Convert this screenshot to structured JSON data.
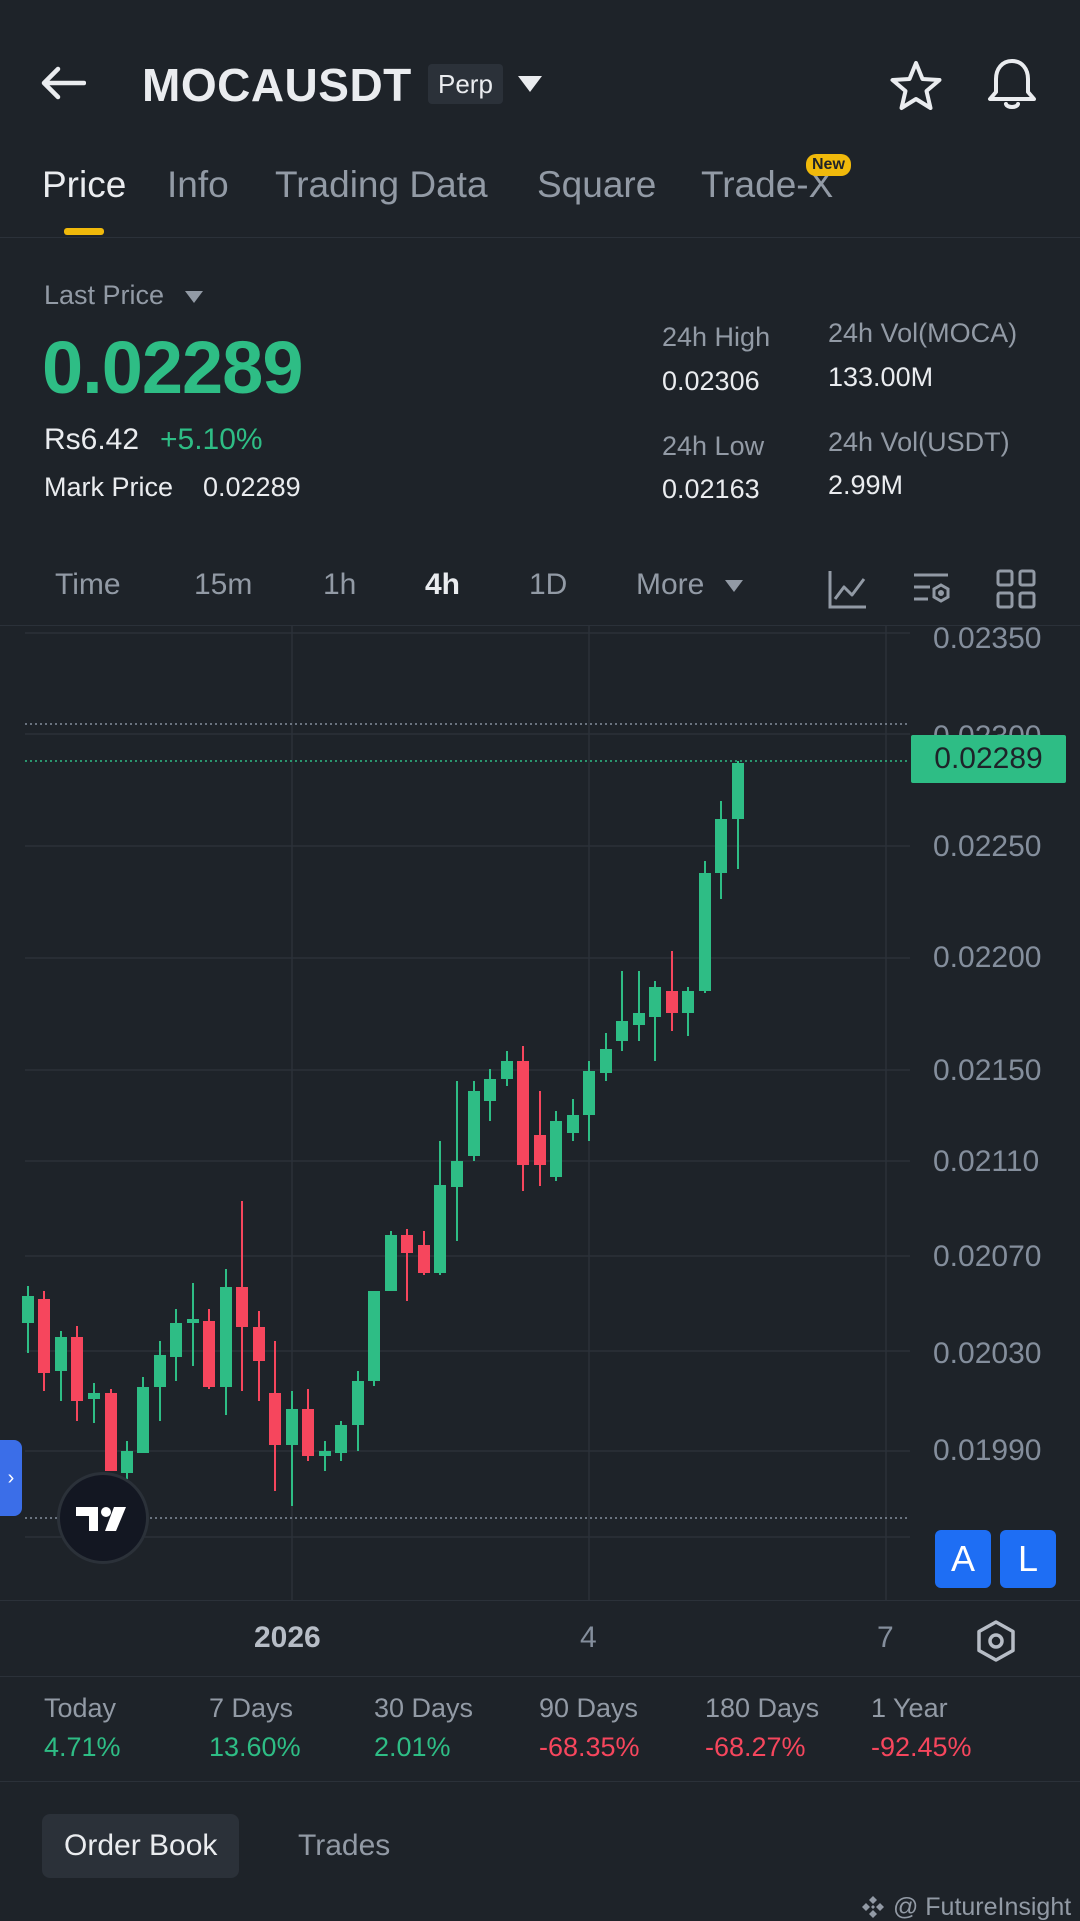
{
  "header": {
    "title": "MOCAUSDT",
    "badge": "Perp"
  },
  "tabs": [
    {
      "label": "Price"
    },
    {
      "label": "Info"
    },
    {
      "label": "Trading Data"
    },
    {
      "label": "Square"
    },
    {
      "label": "Trade-X"
    }
  ],
  "new_badge": "New",
  "price": {
    "last_price_label": "Last Price",
    "value": "0.02289",
    "local_price": "Rs6.42",
    "change_pct": "+5.10%",
    "mark_label": "Mark Price",
    "mark_value": "0.02289"
  },
  "stats": {
    "high_label": "24h High",
    "high_value": "0.02306",
    "low_label": "24h Low",
    "low_value": "0.02163",
    "vol_moca_label": "24h Vol(MOCA)",
    "vol_moca_value": "133.00M",
    "vol_usdt_label": "24h Vol(USDT)",
    "vol_usdt_value": "2.99M"
  },
  "intervals": [
    {
      "label": "Time"
    },
    {
      "label": "15m"
    },
    {
      "label": "1h"
    },
    {
      "label": "4h"
    },
    {
      "label": "1D"
    },
    {
      "label": "More"
    }
  ],
  "chart_data": {
    "type": "candlestick",
    "y_ticks": [
      "0.02350",
      "0.02300",
      "0.02250",
      "0.02200",
      "0.02150",
      "0.02110",
      "0.02070",
      "0.02030",
      "0.01990"
    ],
    "x_labels": [
      "2026",
      "4",
      "7"
    ],
    "current_price": "0.02289",
    "colors": {
      "up": "#2ebd85",
      "down": "#f6465d"
    }
  },
  "chart_buttons": {
    "a": "A",
    "l": "L"
  },
  "performance": [
    {
      "label": "Today",
      "value": "4.71%"
    },
    {
      "label": "7 Days",
      "value": "13.60%"
    },
    {
      "label": "30 Days",
      "value": "2.01%"
    },
    {
      "label": "90 Days",
      "value": "-68.35%"
    },
    {
      "label": "180 Days",
      "value": "-68.27%"
    },
    {
      "label": "1 Year",
      "value": "-92.45%"
    }
  ],
  "bottom": {
    "order_book": "Order Book",
    "trades": "Trades",
    "watermark": "@ FutureInsight"
  }
}
